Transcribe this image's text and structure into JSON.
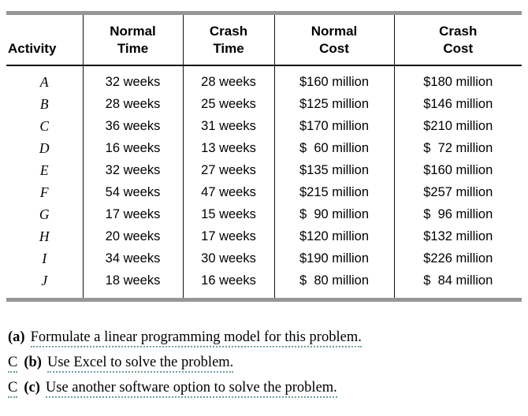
{
  "colors": {
    "rule_gray": "#969696",
    "underline_green": "#6f9f9f",
    "text": "#000000",
    "table_line": "#111111"
  },
  "table": {
    "headers": [
      {
        "lines": [
          "Activity"
        ]
      },
      {
        "lines": [
          "Normal",
          "Time"
        ]
      },
      {
        "lines": [
          "Crash",
          "Time"
        ]
      },
      {
        "lines": [
          "Normal",
          "Cost"
        ]
      },
      {
        "lines": [
          "Crash",
          "Cost"
        ]
      }
    ],
    "rows": [
      [
        "A",
        "32 weeks",
        "28 weeks",
        "$160 million",
        "$180 million"
      ],
      [
        "B",
        "28 weeks",
        "25 weeks",
        "$125 million",
        "$146 million"
      ],
      [
        "C",
        "36 weeks",
        "31 weeks",
        "$170 million",
        "$210 million"
      ],
      [
        "D",
        "16 weeks",
        "13 weeks",
        "$  60 million",
        "$  72 million"
      ],
      [
        "E",
        "32 weeks",
        "27 weeks",
        "$135 million",
        "$160 million"
      ],
      [
        "F",
        "54 weeks",
        "47 weeks",
        "$215 million",
        "$257 million"
      ],
      [
        "G",
        "17 weeks",
        "15 weeks",
        "$  90 million",
        "$  96 million"
      ],
      [
        "H",
        "20 weeks",
        "17 weeks",
        "$120 million",
        "$132 million"
      ],
      [
        "I",
        "34 weeks",
        "30 weeks",
        "$190 million",
        "$226 million"
      ],
      [
        "J",
        "18 weeks",
        "16 weeks",
        "$  80 million",
        "$  84 million"
      ]
    ]
  },
  "questions": [
    {
      "prefix": "",
      "label": "(a)",
      "text": "Formulate a linear programming model for this problem."
    },
    {
      "prefix": "C",
      "label": "(b)",
      "text": "Use Excel to solve the problem."
    },
    {
      "prefix": "C",
      "label": "(c)",
      "text": "Use another software option to solve the problem."
    }
  ]
}
